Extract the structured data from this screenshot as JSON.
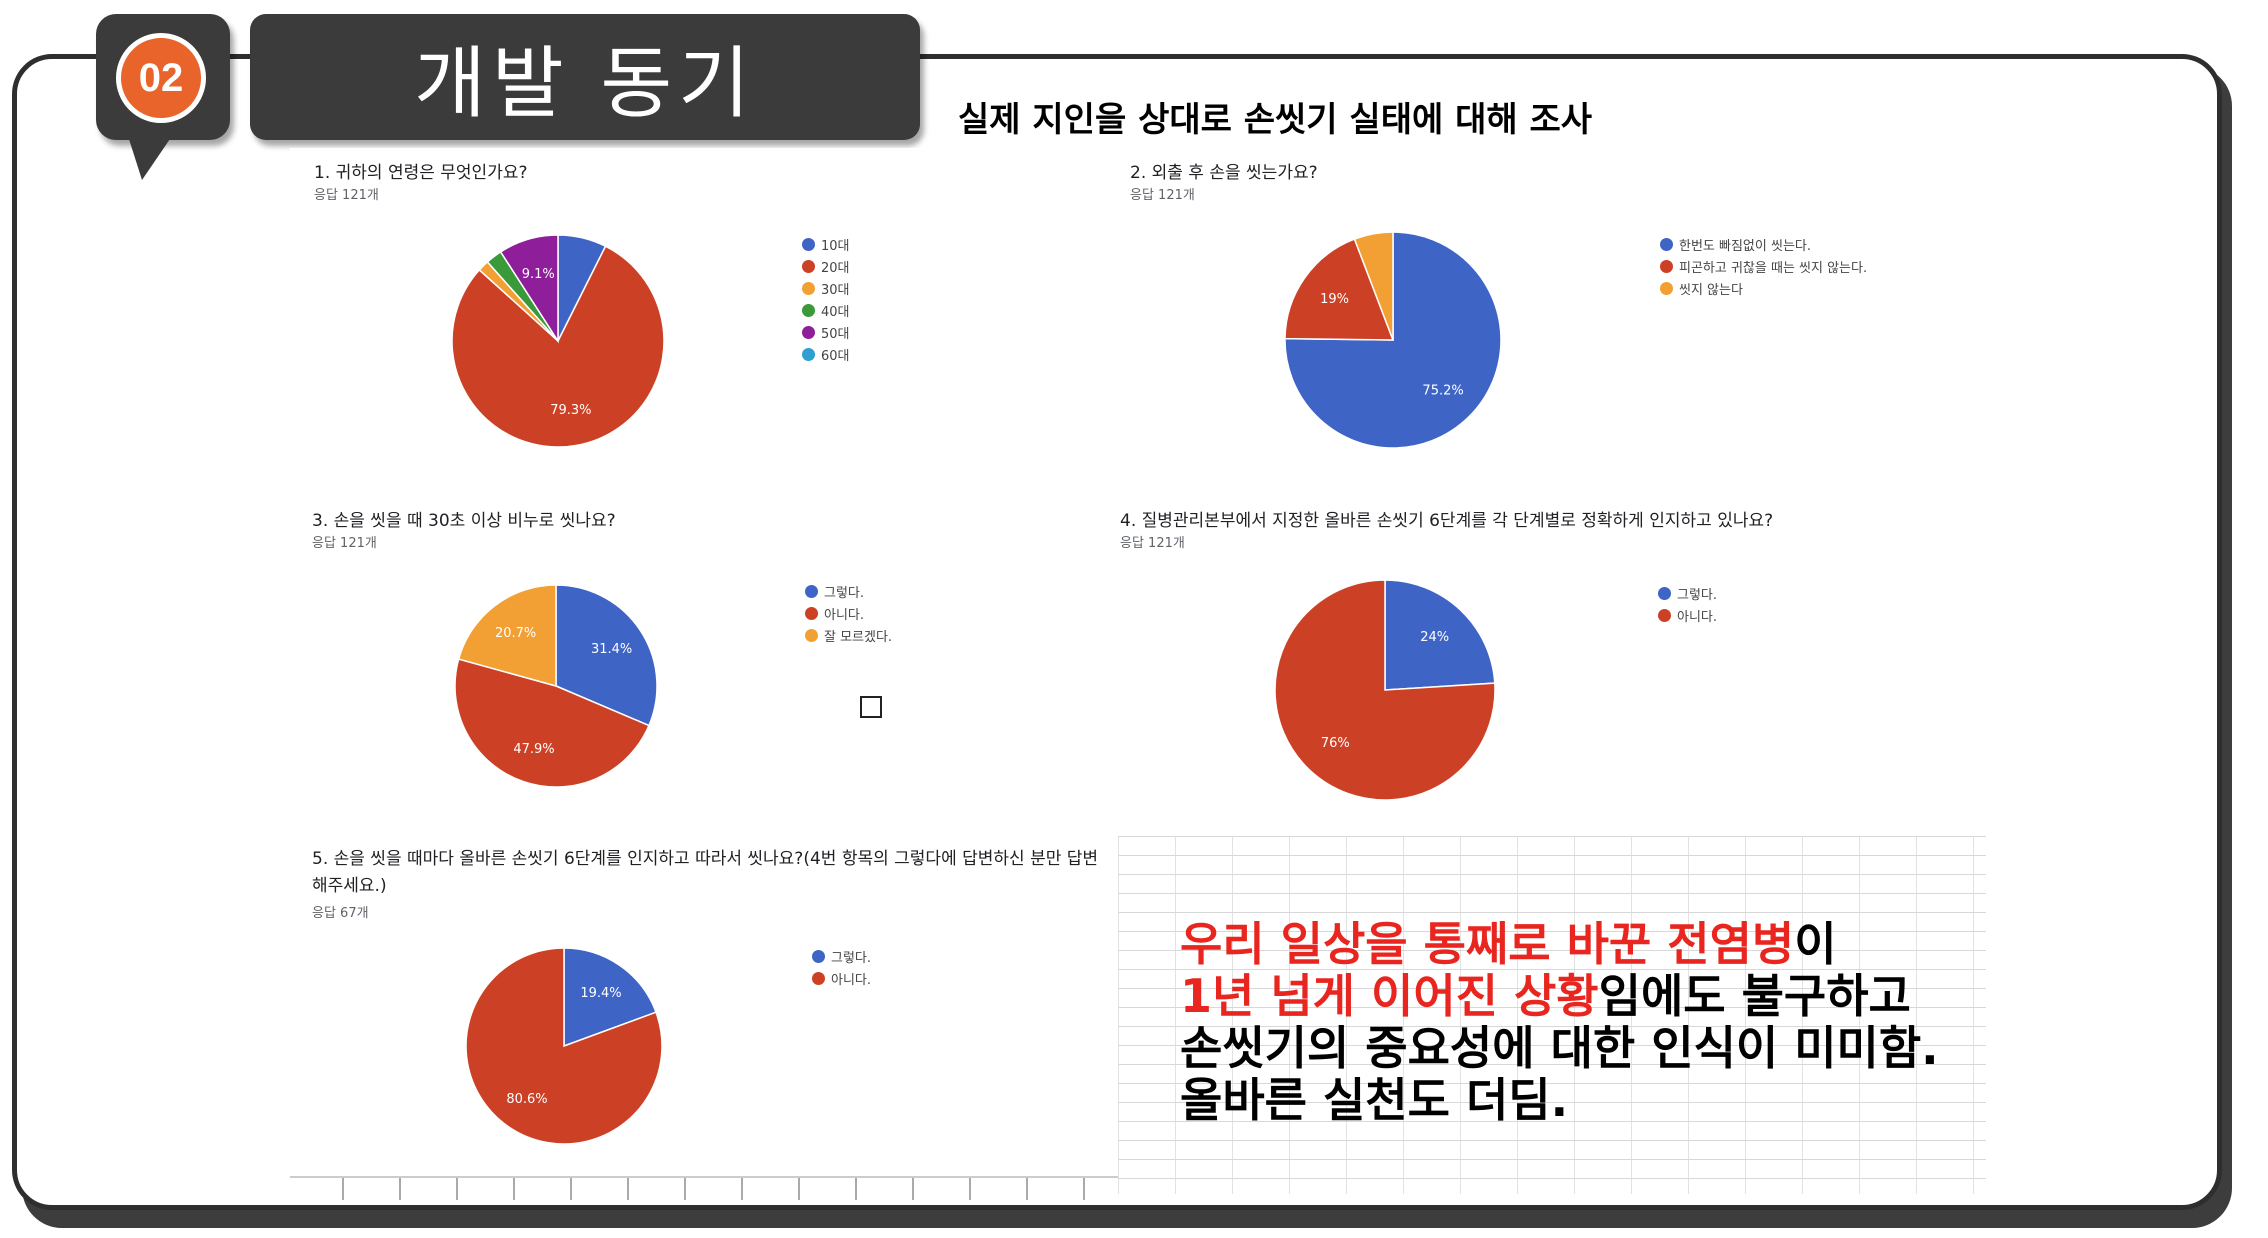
{
  "slide": {
    "number": "02",
    "title": "개발 동기",
    "subtitle": "실제 지인을 상대로 손씻기 실태에 대해 조사",
    "callout": {
      "lines": [
        [
          {
            "text": "우리 일상을 통째로 바꾼 전염병",
            "color": "#e8261f"
          },
          {
            "text": "이",
            "color": "#000000"
          }
        ],
        [
          {
            "text": "1년 넘게 이어진 상황",
            "color": "#e8261f"
          },
          {
            "text": "임에도 불구하고",
            "color": "#000000"
          }
        ],
        [
          {
            "text": "손씻기의 중요성에 대한 인식이 미미함.",
            "color": "#000000"
          }
        ],
        [
          {
            "text": "올바른 실천도 더딤.",
            "color": "#000000"
          }
        ]
      ]
    }
  },
  "chart_data": [
    {
      "type": "pie",
      "title": "1. 귀하의 연령은 무엇인가요?",
      "subtitle": "응답 121개",
      "categories": [
        "10대",
        "20대",
        "30대",
        "40대",
        "50대",
        "60대"
      ],
      "values": [
        7.4,
        79.3,
        1.7,
        2.5,
        9.1,
        0
      ],
      "colors": [
        "#3e64c6",
        "#cc4125",
        "#f2a034",
        "#3a9a3a",
        "#8e1e99",
        "#2e9fd1"
      ],
      "labels": [
        "",
        "79.3%",
        "",
        "",
        "9.1%",
        ""
      ],
      "legend": "right"
    },
    {
      "type": "pie",
      "title": "2. 외출 후 손을 씻는가요?",
      "subtitle": "응답 121개",
      "categories": [
        "한번도 빠짐없이 씻는다.",
        "피곤하고 귀찮을 때는 씻지 않는다.",
        "씻지 않는다"
      ],
      "values": [
        75.2,
        19,
        5.8
      ],
      "colors": [
        "#3e64c6",
        "#cc4125",
        "#f2a034"
      ],
      "labels": [
        "75.2%",
        "19%",
        ""
      ],
      "legend": "right"
    },
    {
      "type": "pie",
      "title": "3. 손을 씻을 때 30초 이상 비누로 씻나요?",
      "subtitle": "응답 121개",
      "categories": [
        "그렇다.",
        "아니다.",
        "잘 모르겠다."
      ],
      "values": [
        31.4,
        47.9,
        20.7
      ],
      "colors": [
        "#3e64c6",
        "#cc4125",
        "#f2a034"
      ],
      "labels": [
        "31.4%",
        "47.9%",
        "20.7%"
      ],
      "legend": "right"
    },
    {
      "type": "pie",
      "title": "4. 질병관리본부에서 지정한 올바른 손씻기 6단계를 각 단계별로 정확하게 인지하고 있나요?",
      "subtitle": "응답 121개",
      "categories": [
        "그렇다.",
        "아니다."
      ],
      "values": [
        24,
        76
      ],
      "colors": [
        "#3e64c6",
        "#cc4125"
      ],
      "labels": [
        "24%",
        "76%"
      ],
      "legend": "right"
    },
    {
      "type": "pie",
      "title": "5. 손을 씻을 때마다 올바른 손씻기 6단계를 인지하고 따라서 씻나요?(4번 항목의 그렇다에 답변하신 분만 답변해주세요.)",
      "subtitle": "응답 67개",
      "categories": [
        "그렇다.",
        "아니다."
      ],
      "values": [
        19.4,
        80.6
      ],
      "colors": [
        "#3e64c6",
        "#cc4125"
      ],
      "labels": [
        "19.4%",
        "80.6%"
      ],
      "legend": "right"
    }
  ]
}
